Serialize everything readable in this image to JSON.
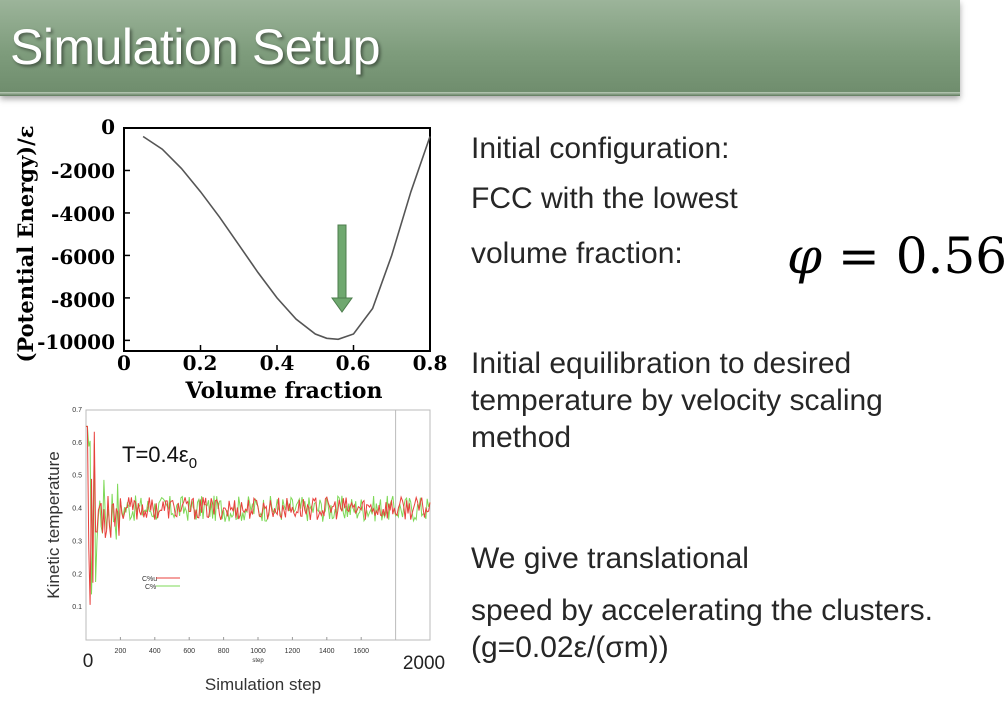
{
  "slide": {
    "title": "Simulation Setup",
    "accent_color": "#7e9c7c"
  },
  "bullets": {
    "init_config_1": "Initial configuration:",
    "init_config_2": "FCC with the lowest",
    "init_config_3": "volume fraction:",
    "formula_symbol": "φ",
    "formula_eq": "=",
    "formula_value": "0.56",
    "equilibration": "Initial equilibration to desired temperature by velocity scaling method",
    "translational_1": "We give translational",
    "translational_2": "speed by accelerating the clusters. (g=0.02ε/(σm))"
  },
  "chart_data": [
    {
      "type": "line",
      "xlabel": "Volume fraction",
      "ylabel": "(Potential Energy)/ε",
      "xticks": [
        "0",
        "0.2",
        "0.4",
        "0.6",
        "0.8"
      ],
      "yticks": [
        "0",
        "-2000",
        "-4000",
        "-6000",
        "-8000",
        "-10000"
      ],
      "xlim": [
        0,
        0.8
      ],
      "ylim": [
        -10500,
        0
      ],
      "series": [
        {
          "x": [
            0.05,
            0.1,
            0.15,
            0.2,
            0.25,
            0.3,
            0.35,
            0.4,
            0.45,
            0.5,
            0.53,
            0.56,
            0.6,
            0.65,
            0.7,
            0.75,
            0.8
          ],
          "values": [
            -400,
            -1000,
            -1900,
            -3000,
            -4200,
            -5500,
            -6800,
            -8000,
            -9000,
            -9700,
            -9900,
            -9950,
            -9700,
            -8500,
            -6000,
            -3000,
            -400
          ]
        }
      ],
      "annotation": "arrow pointing at minimum near 0.56"
    },
    {
      "type": "line",
      "xlabel": "Simulation step",
      "ylabel": "Kinetic temperature",
      "annotation": "T=0.4ε",
      "annotation_sub": "0",
      "xticks": [
        "200",
        "400",
        "600",
        "800",
        "1000",
        "1200",
        "1400",
        "1600"
      ],
      "x_end_labels": [
        "0",
        "2000"
      ],
      "x_inner_label": "step",
      "yticks": [
        "0.7",
        "0.6",
        "0.5",
        "0.4",
        "0.3",
        "0.2",
        "0.1"
      ],
      "xlim": [
        0,
        2000
      ],
      "ylim": [
        0,
        0.7
      ],
      "equilibrium_value": 0.4,
      "vertical_marker_x": 1800,
      "legend_entries": [
        "C%u",
        "C%"
      ],
      "series_colors": [
        "#e8403c",
        "#7ed957"
      ]
    }
  ]
}
